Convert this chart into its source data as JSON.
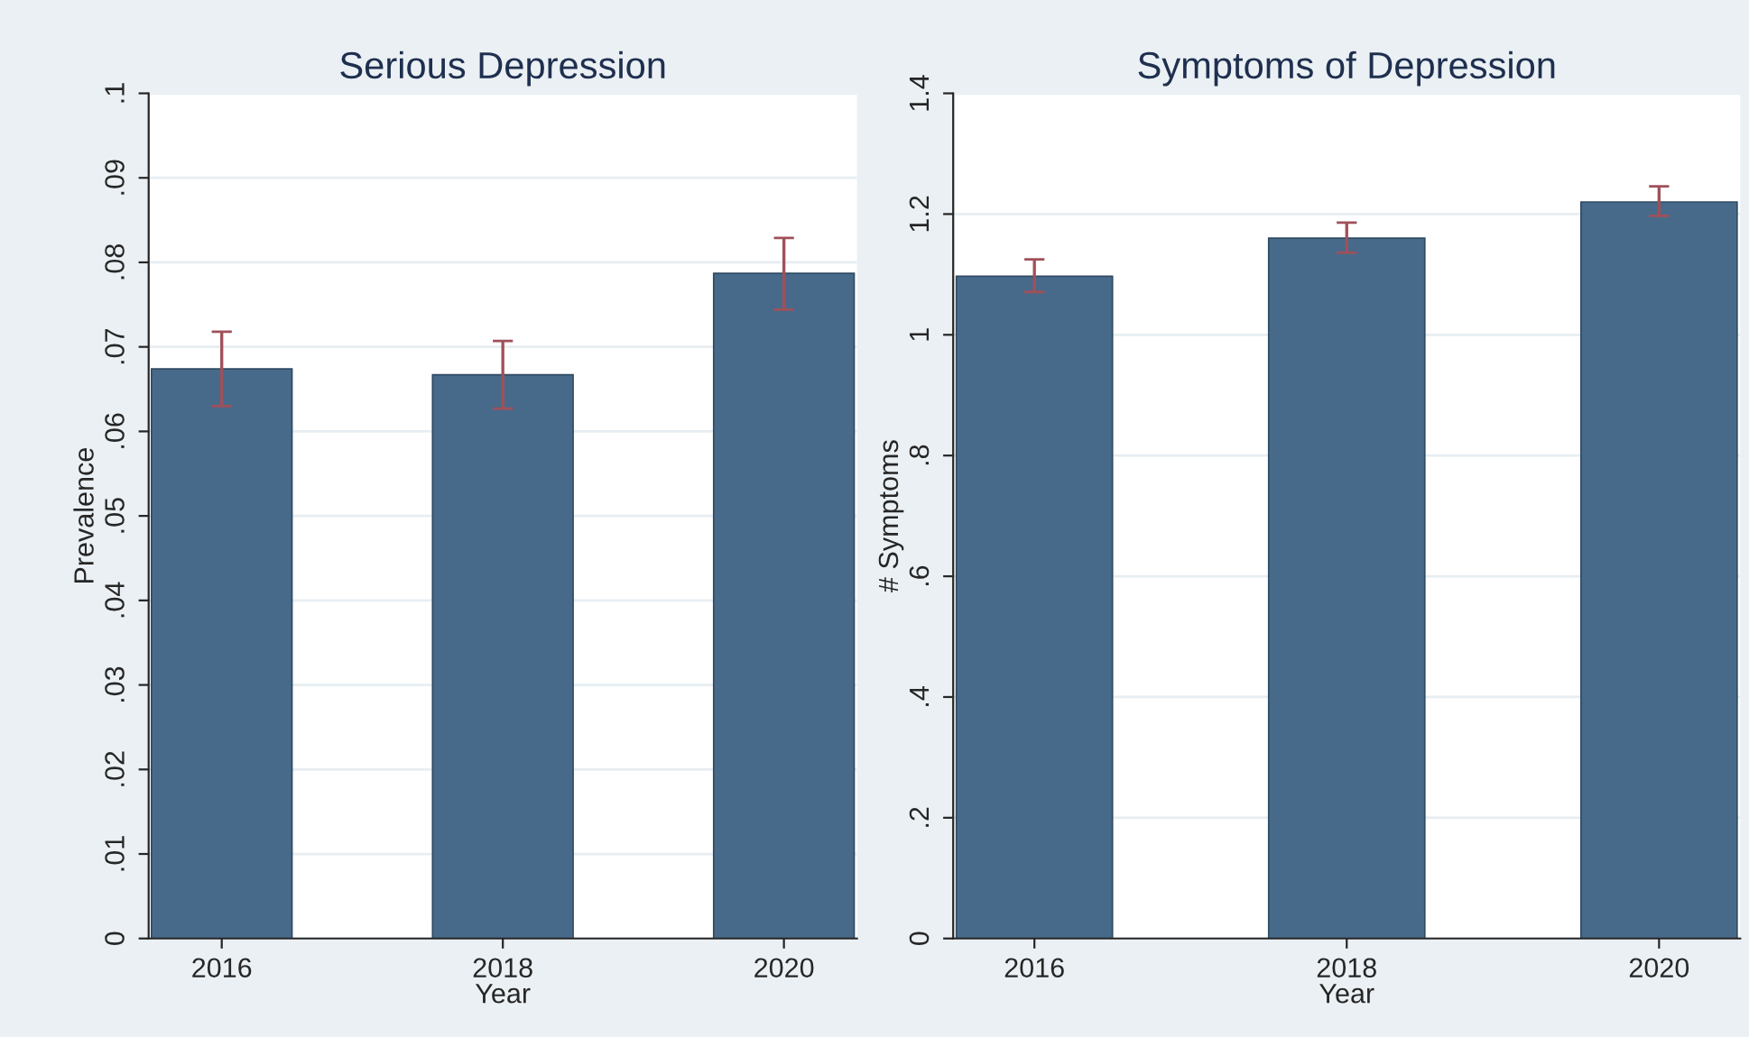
{
  "chart_data": [
    {
      "type": "bar",
      "title": "Serious Depression",
      "xlabel": "Year",
      "ylabel": "Prevalence",
      "categories": [
        "2016",
        "2018",
        "2020"
      ],
      "series": [
        {
          "color": "#486a8a",
          "values": [
            0.0674,
            0.0667,
            0.0787
          ],
          "errors": [
            [
              0.063,
              0.0718
            ],
            [
              0.0627,
              0.0707
            ],
            [
              0.0744,
              0.0829
            ]
          ]
        }
      ],
      "ylim": [
        0,
        0.1
      ],
      "yticks": [
        0,
        {
          "value": 0.01,
          "label": ".01"
        },
        {
          "value": 0.02,
          "label": ".02"
        },
        {
          "value": 0.03,
          "label": ".03"
        },
        {
          "value": 0.04,
          "label": ".04"
        },
        {
          "value": 0.05,
          "label": ".05"
        },
        {
          "value": 0.06,
          "label": ".06"
        },
        {
          "value": 0.07,
          "label": ".07"
        },
        {
          "value": 0.08,
          "label": ".08"
        },
        {
          "value": 0.09,
          "label": ".09"
        },
        {
          "value": 0.1,
          "label": ".1"
        }
      ],
      "grid": "y"
    },
    {
      "type": "bar",
      "title": "Symptoms of Depression",
      "xlabel": "Year",
      "ylabel": "# Symptoms",
      "categories": [
        "2016",
        "2018",
        "2020"
      ],
      "series": [
        {
          "color": "#486a8a",
          "values": [
            1.097,
            1.16,
            1.22
          ],
          "errors": [
            [
              1.071,
              1.125
            ],
            [
              1.136,
              1.186
            ],
            [
              1.197,
              1.246
            ]
          ]
        }
      ],
      "ylim": [
        0,
        1.4
      ],
      "yticks": [
        0,
        {
          "value": 0.2,
          "label": ".2"
        },
        {
          "value": 0.4,
          "label": ".4"
        },
        {
          "value": 0.6,
          "label": ".6"
        },
        {
          "value": 0.8,
          "label": ".8"
        },
        1,
        {
          "value": 1.2,
          "label": "1.2"
        },
        {
          "value": 1.4,
          "label": "1.4"
        }
      ],
      "grid": "y"
    }
  ]
}
